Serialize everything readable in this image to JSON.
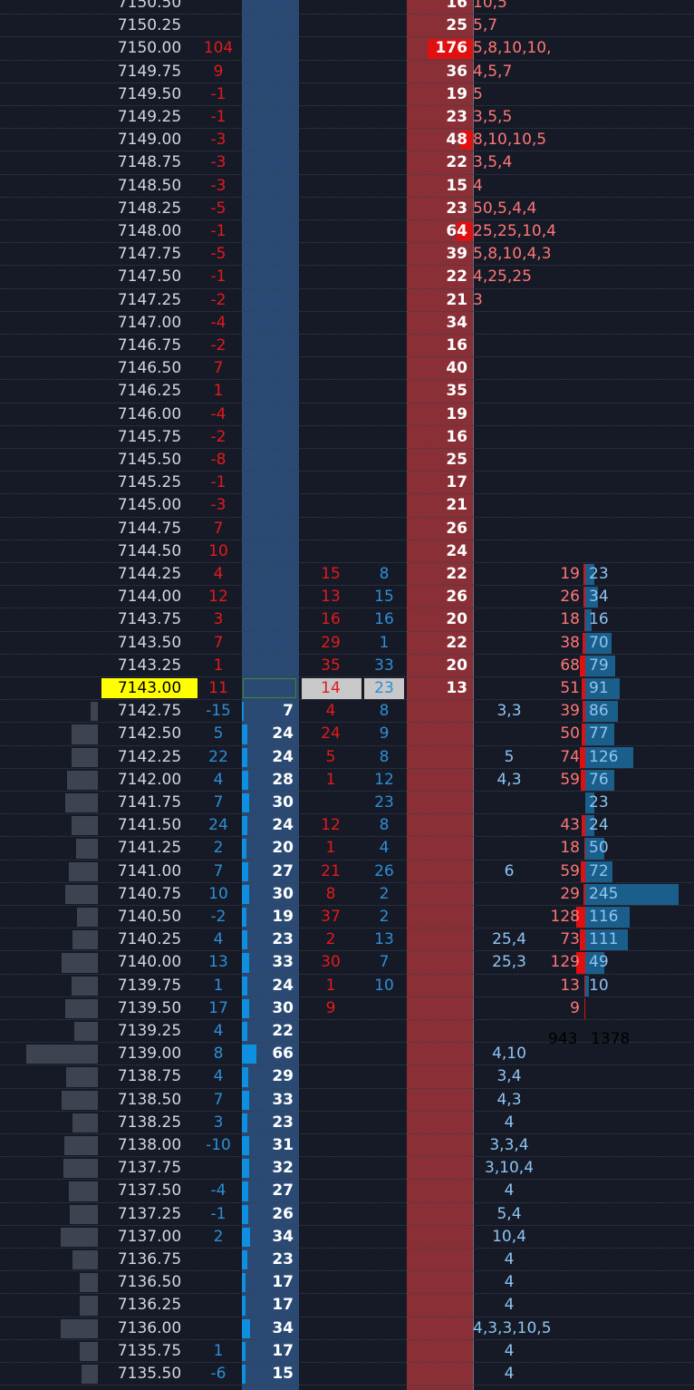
{
  "colors": {
    "background": "#161a26",
    "bid_column": "#2a4a73",
    "ask_column": "#8a2f36",
    "sell_red": "#e21b1b",
    "buy_blue": "#2c8fd6",
    "current_price_bg": "#ffff00"
  },
  "current_price": "7143.00",
  "rows": [
    {
      "price": "7150.50",
      "delta": "",
      "bid": "",
      "tsell": "",
      "tbuy": "",
      "ask": "16",
      "ask_list": "10,5",
      "bid_list": "",
      "vsell": "",
      "vbuy": ""
    },
    {
      "price": "7150.25",
      "delta": "",
      "bid": "",
      "tsell": "",
      "tbuy": "",
      "ask": "25",
      "ask_list": "5,7",
      "bid_list": "",
      "vsell": "",
      "vbuy": ""
    },
    {
      "price": "7150.00",
      "delta": "104",
      "bid": "",
      "tsell": "",
      "tbuy": "",
      "ask": "176",
      "ask_list": "5,8,10,10,",
      "bid_list": "",
      "vsell": "",
      "vbuy": ""
    },
    {
      "price": "7149.75",
      "delta": "9",
      "bid": "",
      "tsell": "",
      "tbuy": "",
      "ask": "36",
      "ask_list": "4,5,7",
      "bid_list": "",
      "vsell": "",
      "vbuy": ""
    },
    {
      "price": "7149.50",
      "delta": "-1",
      "bid": "",
      "tsell": "",
      "tbuy": "",
      "ask": "19",
      "ask_list": "5",
      "bid_list": "",
      "vsell": "",
      "vbuy": ""
    },
    {
      "price": "7149.25",
      "delta": "-1",
      "bid": "",
      "tsell": "",
      "tbuy": "",
      "ask": "23",
      "ask_list": "3,5,5",
      "bid_list": "",
      "vsell": "",
      "vbuy": ""
    },
    {
      "price": "7149.00",
      "delta": "-3",
      "bid": "",
      "tsell": "",
      "tbuy": "",
      "ask": "48",
      "ask_list": "8,10,10,5",
      "bid_list": "",
      "vsell": "",
      "vbuy": ""
    },
    {
      "price": "7148.75",
      "delta": "-3",
      "bid": "",
      "tsell": "",
      "tbuy": "",
      "ask": "22",
      "ask_list": "3,5,4",
      "bid_list": "",
      "vsell": "",
      "vbuy": ""
    },
    {
      "price": "7148.50",
      "delta": "-3",
      "bid": "",
      "tsell": "",
      "tbuy": "",
      "ask": "15",
      "ask_list": "4",
      "bid_list": "",
      "vsell": "",
      "vbuy": ""
    },
    {
      "price": "7148.25",
      "delta": "-5",
      "bid": "",
      "tsell": "",
      "tbuy": "",
      "ask": "23",
      "ask_list": "50,5,4,4",
      "bid_list": "",
      "vsell": "",
      "vbuy": ""
    },
    {
      "price": "7148.00",
      "delta": "-1",
      "bid": "",
      "tsell": "",
      "tbuy": "",
      "ask": "64",
      "ask_list": "25,25,10,4",
      "bid_list": "",
      "vsell": "",
      "vbuy": ""
    },
    {
      "price": "7147.75",
      "delta": "-5",
      "bid": "",
      "tsell": "",
      "tbuy": "",
      "ask": "39",
      "ask_list": "5,8,10,4,3",
      "bid_list": "",
      "vsell": "",
      "vbuy": ""
    },
    {
      "price": "7147.50",
      "delta": "-1",
      "bid": "",
      "tsell": "",
      "tbuy": "",
      "ask": "22",
      "ask_list": "4,25,25",
      "bid_list": "",
      "vsell": "",
      "vbuy": ""
    },
    {
      "price": "7147.25",
      "delta": "-2",
      "bid": "",
      "tsell": "",
      "tbuy": "",
      "ask": "21",
      "ask_list": "3",
      "bid_list": "",
      "vsell": "",
      "vbuy": ""
    },
    {
      "price": "7147.00",
      "delta": "-4",
      "bid": "",
      "tsell": "",
      "tbuy": "",
      "ask": "34",
      "ask_list": "",
      "bid_list": "",
      "vsell": "",
      "vbuy": ""
    },
    {
      "price": "7146.75",
      "delta": "-2",
      "bid": "",
      "tsell": "",
      "tbuy": "",
      "ask": "16",
      "ask_list": "",
      "bid_list": "",
      "vsell": "",
      "vbuy": ""
    },
    {
      "price": "7146.50",
      "delta": "7",
      "bid": "",
      "tsell": "",
      "tbuy": "",
      "ask": "40",
      "ask_list": "",
      "bid_list": "",
      "vsell": "",
      "vbuy": ""
    },
    {
      "price": "7146.25",
      "delta": "1",
      "bid": "",
      "tsell": "",
      "tbuy": "",
      "ask": "35",
      "ask_list": "",
      "bid_list": "",
      "vsell": "",
      "vbuy": ""
    },
    {
      "price": "7146.00",
      "delta": "-4",
      "bid": "",
      "tsell": "",
      "tbuy": "",
      "ask": "19",
      "ask_list": "",
      "bid_list": "",
      "vsell": "",
      "vbuy": ""
    },
    {
      "price": "7145.75",
      "delta": "-2",
      "bid": "",
      "tsell": "",
      "tbuy": "",
      "ask": "16",
      "ask_list": "",
      "bid_list": "",
      "vsell": "",
      "vbuy": ""
    },
    {
      "price": "7145.50",
      "delta": "-8",
      "bid": "",
      "tsell": "",
      "tbuy": "",
      "ask": "25",
      "ask_list": "",
      "bid_list": "",
      "vsell": "",
      "vbuy": ""
    },
    {
      "price": "7145.25",
      "delta": "-1",
      "bid": "",
      "tsell": "",
      "tbuy": "",
      "ask": "17",
      "ask_list": "",
      "bid_list": "",
      "vsell": "",
      "vbuy": ""
    },
    {
      "price": "7145.00",
      "delta": "-3",
      "bid": "",
      "tsell": "",
      "tbuy": "",
      "ask": "21",
      "ask_list": "",
      "bid_list": "",
      "vsell": "",
      "vbuy": ""
    },
    {
      "price": "7144.75",
      "delta": "7",
      "bid": "",
      "tsell": "",
      "tbuy": "",
      "ask": "26",
      "ask_list": "",
      "bid_list": "",
      "vsell": "",
      "vbuy": ""
    },
    {
      "price": "7144.50",
      "delta": "10",
      "bid": "",
      "tsell": "",
      "tbuy": "",
      "ask": "24",
      "ask_list": "",
      "bid_list": "",
      "vsell": "",
      "vbuy": ""
    },
    {
      "price": "7144.25",
      "delta": "4",
      "bid": "",
      "tsell": "15",
      "tbuy": "8",
      "ask": "22",
      "ask_list": "",
      "bid_list": "",
      "vsell": "19",
      "vbuy": "23"
    },
    {
      "price": "7144.00",
      "delta": "12",
      "bid": "",
      "tsell": "13",
      "tbuy": "15",
      "ask": "26",
      "ask_list": "",
      "bid_list": "",
      "vsell": "26",
      "vbuy": "34"
    },
    {
      "price": "7143.75",
      "delta": "3",
      "bid": "",
      "tsell": "16",
      "tbuy": "16",
      "ask": "20",
      "ask_list": "",
      "bid_list": "",
      "vsell": "18",
      "vbuy": "16"
    },
    {
      "price": "7143.50",
      "delta": "7",
      "bid": "",
      "tsell": "29",
      "tbuy": "1",
      "ask": "22",
      "ask_list": "",
      "bid_list": "",
      "vsell": "38",
      "vbuy": "70"
    },
    {
      "price": "7143.25",
      "delta": "1",
      "bid": "",
      "tsell": "35",
      "tbuy": "33",
      "ask": "20",
      "ask_list": "",
      "bid_list": "",
      "vsell": "68",
      "vbuy": "79"
    },
    {
      "price": "7143.00",
      "delta": "11",
      "bid": "",
      "tsell": "14",
      "tbuy": "23",
      "ask": "13",
      "ask_list": "",
      "bid_list": "",
      "vsell": "51",
      "vbuy": "91"
    },
    {
      "price": "7142.75",
      "delta": "-15",
      "bid": "7",
      "tsell": "4",
      "tbuy": "8",
      "ask": "",
      "ask_list": "",
      "bid_list": "3,3",
      "vsell": "39",
      "vbuy": "86"
    },
    {
      "price": "7142.50",
      "delta": "5",
      "bid": "24",
      "tsell": "24",
      "tbuy": "9",
      "ask": "",
      "ask_list": "",
      "bid_list": "",
      "vsell": "50",
      "vbuy": "77"
    },
    {
      "price": "7142.25",
      "delta": "22",
      "bid": "24",
      "tsell": "5",
      "tbuy": "8",
      "ask": "",
      "ask_list": "",
      "bid_list": "5",
      "vsell": "74",
      "vbuy": "126"
    },
    {
      "price": "7142.00",
      "delta": "4",
      "bid": "28",
      "tsell": "1",
      "tbuy": "12",
      "ask": "",
      "ask_list": "",
      "bid_list": "4,3",
      "vsell": "59",
      "vbuy": "76"
    },
    {
      "price": "7141.75",
      "delta": "7",
      "bid": "30",
      "tsell": "",
      "tbuy": "23",
      "ask": "",
      "ask_list": "",
      "bid_list": "",
      "vsell": "",
      "vbuy": "23"
    },
    {
      "price": "7141.50",
      "delta": "24",
      "bid": "24",
      "tsell": "12",
      "tbuy": "8",
      "ask": "",
      "ask_list": "",
      "bid_list": "",
      "vsell": "43",
      "vbuy": "24"
    },
    {
      "price": "7141.25",
      "delta": "2",
      "bid": "20",
      "tsell": "1",
      "tbuy": "4",
      "ask": "",
      "ask_list": "",
      "bid_list": "",
      "vsell": "18",
      "vbuy": "50"
    },
    {
      "price": "7141.00",
      "delta": "7",
      "bid": "27",
      "tsell": "21",
      "tbuy": "26",
      "ask": "",
      "ask_list": "",
      "bid_list": "6",
      "vsell": "59",
      "vbuy": "72"
    },
    {
      "price": "7140.75",
      "delta": "10",
      "bid": "30",
      "tsell": "8",
      "tbuy": "2",
      "ask": "",
      "ask_list": "",
      "bid_list": "",
      "vsell": "29",
      "vbuy": "245"
    },
    {
      "price": "7140.50",
      "delta": "-2",
      "bid": "19",
      "tsell": "37",
      "tbuy": "2",
      "ask": "",
      "ask_list": "",
      "bid_list": "",
      "vsell": "128",
      "vbuy": "116"
    },
    {
      "price": "7140.25",
      "delta": "4",
      "bid": "23",
      "tsell": "2",
      "tbuy": "13",
      "ask": "",
      "ask_list": "",
      "bid_list": "25,4",
      "vsell": "73",
      "vbuy": "111"
    },
    {
      "price": "7140.00",
      "delta": "13",
      "bid": "33",
      "tsell": "30",
      "tbuy": "7",
      "ask": "",
      "ask_list": "",
      "bid_list": "25,3",
      "vsell": "129",
      "vbuy": "49"
    },
    {
      "price": "7139.75",
      "delta": "1",
      "bid": "24",
      "tsell": "1",
      "tbuy": "10",
      "ask": "",
      "ask_list": "",
      "bid_list": "",
      "vsell": "13",
      "vbuy": "10"
    },
    {
      "price": "7139.50",
      "delta": "17",
      "bid": "30",
      "tsell": "9",
      "tbuy": "",
      "ask": "",
      "ask_list": "",
      "bid_list": "",
      "vsell": "9",
      "vbuy": ""
    },
    {
      "price": "7139.25",
      "delta": "4",
      "bid": "22",
      "tsell": "",
      "tbuy": "",
      "ask": "",
      "ask_list": "",
      "bid_list": "",
      "vsell": "",
      "vbuy": ""
    },
    {
      "price": "7139.00",
      "delta": "8",
      "bid": "66",
      "tsell": "",
      "tbuy": "",
      "ask": "",
      "ask_list": "",
      "bid_list": "4,10",
      "vsell": "",
      "vbuy": ""
    },
    {
      "price": "7138.75",
      "delta": "4",
      "bid": "29",
      "tsell": "",
      "tbuy": "",
      "ask": "",
      "ask_list": "",
      "bid_list": "3,4",
      "vsell": "",
      "vbuy": ""
    },
    {
      "price": "7138.50",
      "delta": "7",
      "bid": "33",
      "tsell": "",
      "tbuy": "",
      "ask": "",
      "ask_list": "",
      "bid_list": "4,3",
      "vsell": "",
      "vbuy": ""
    },
    {
      "price": "7138.25",
      "delta": "3",
      "bid": "23",
      "tsell": "",
      "tbuy": "",
      "ask": "",
      "ask_list": "",
      "bid_list": "4",
      "vsell": "",
      "vbuy": ""
    },
    {
      "price": "7138.00",
      "delta": "-10",
      "bid": "31",
      "tsell": "",
      "tbuy": "",
      "ask": "",
      "ask_list": "",
      "bid_list": "3,3,4",
      "vsell": "",
      "vbuy": ""
    },
    {
      "price": "7137.75",
      "delta": "",
      "bid": "32",
      "tsell": "",
      "tbuy": "",
      "ask": "",
      "ask_list": "",
      "bid_list": "3,10,4",
      "vsell": "",
      "vbuy": ""
    },
    {
      "price": "7137.50",
      "delta": "-4",
      "bid": "27",
      "tsell": "",
      "tbuy": "",
      "ask": "",
      "ask_list": "",
      "bid_list": "4",
      "vsell": "",
      "vbuy": ""
    },
    {
      "price": "7137.25",
      "delta": "-1",
      "bid": "26",
      "tsell": "",
      "tbuy": "",
      "ask": "",
      "ask_list": "",
      "bid_list": "5,4",
      "vsell": "",
      "vbuy": ""
    },
    {
      "price": "7137.00",
      "delta": "2",
      "bid": "34",
      "tsell": "",
      "tbuy": "",
      "ask": "",
      "ask_list": "",
      "bid_list": "10,4",
      "vsell": "",
      "vbuy": ""
    },
    {
      "price": "7136.75",
      "delta": "",
      "bid": "23",
      "tsell": "",
      "tbuy": "",
      "ask": "",
      "ask_list": "",
      "bid_list": "4",
      "vsell": "",
      "vbuy": ""
    },
    {
      "price": "7136.50",
      "delta": "",
      "bid": "17",
      "tsell": "",
      "tbuy": "",
      "ask": "",
      "ask_list": "",
      "bid_list": "4",
      "vsell": "",
      "vbuy": ""
    },
    {
      "price": "7136.25",
      "delta": "",
      "bid": "17",
      "tsell": "",
      "tbuy": "",
      "ask": "",
      "ask_list": "",
      "bid_list": "4",
      "vsell": "",
      "vbuy": ""
    },
    {
      "price": "7136.00",
      "delta": "",
      "bid": "34",
      "tsell": "",
      "tbuy": "",
      "ask": "",
      "ask_list": "",
      "bid_list": "4,3,3,10,5",
      "vsell": "",
      "vbuy": ""
    },
    {
      "price": "7135.75",
      "delta": "1",
      "bid": "17",
      "tsell": "",
      "tbuy": "",
      "ask": "",
      "ask_list": "",
      "bid_list": "4",
      "vsell": "",
      "vbuy": ""
    },
    {
      "price": "7135.50",
      "delta": "-6",
      "bid": "15",
      "tsell": "",
      "tbuy": "",
      "ask": "",
      "ask_list": "",
      "bid_list": "4",
      "vsell": "",
      "vbuy": ""
    }
  ],
  "totals": {
    "sell": "943",
    "buy": "1378"
  }
}
